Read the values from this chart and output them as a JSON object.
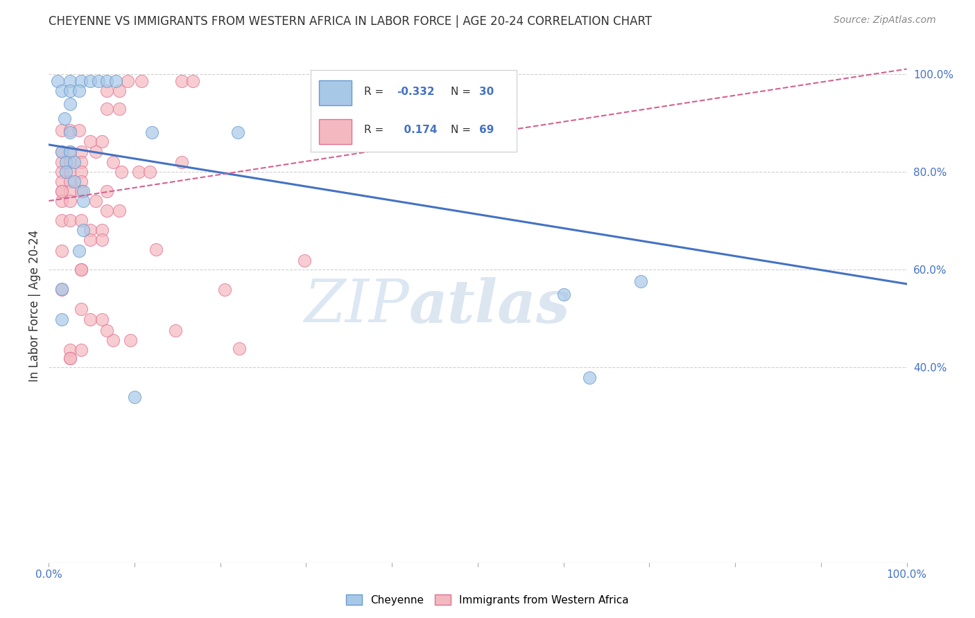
{
  "title": "CHEYENNE VS IMMIGRANTS FROM WESTERN AFRICA IN LABOR FORCE | AGE 20-24 CORRELATION CHART",
  "source": "Source: ZipAtlas.com",
  "ylabel": "In Labor Force | Age 20-24",
  "blue_color": "#a8c8e8",
  "blue_edge_color": "#6699cc",
  "pink_color": "#f4b8c0",
  "pink_edge_color": "#e07090",
  "blue_line_color": "#4472c4",
  "pink_line_color": "#d46090",
  "blue_scatter": [
    [
      0.01,
      0.985
    ],
    [
      0.025,
      0.985
    ],
    [
      0.038,
      0.985
    ],
    [
      0.048,
      0.985
    ],
    [
      0.058,
      0.985
    ],
    [
      0.068,
      0.985
    ],
    [
      0.078,
      0.985
    ],
    [
      0.015,
      0.965
    ],
    [
      0.025,
      0.965
    ],
    [
      0.035,
      0.965
    ],
    [
      0.025,
      0.938
    ],
    [
      0.018,
      0.908
    ],
    [
      0.025,
      0.88
    ],
    [
      0.12,
      0.88
    ],
    [
      0.22,
      0.88
    ],
    [
      0.015,
      0.84
    ],
    [
      0.025,
      0.84
    ],
    [
      0.02,
      0.82
    ],
    [
      0.03,
      0.82
    ],
    [
      0.02,
      0.8
    ],
    [
      0.03,
      0.78
    ],
    [
      0.04,
      0.76
    ],
    [
      0.04,
      0.74
    ],
    [
      0.04,
      0.68
    ],
    [
      0.035,
      0.638
    ],
    [
      0.015,
      0.56
    ],
    [
      0.69,
      0.575
    ],
    [
      0.6,
      0.548
    ],
    [
      0.015,
      0.498
    ],
    [
      0.1,
      0.338
    ],
    [
      0.63,
      0.378
    ]
  ],
  "pink_scatter": [
    [
      0.092,
      0.985
    ],
    [
      0.108,
      0.985
    ],
    [
      0.155,
      0.985
    ],
    [
      0.168,
      0.985
    ],
    [
      0.068,
      0.965
    ],
    [
      0.082,
      0.965
    ],
    [
      0.068,
      0.928
    ],
    [
      0.082,
      0.928
    ],
    [
      0.015,
      0.885
    ],
    [
      0.025,
      0.885
    ],
    [
      0.035,
      0.885
    ],
    [
      0.048,
      0.862
    ],
    [
      0.062,
      0.862
    ],
    [
      0.015,
      0.84
    ],
    [
      0.025,
      0.84
    ],
    [
      0.038,
      0.84
    ],
    [
      0.055,
      0.84
    ],
    [
      0.015,
      0.82
    ],
    [
      0.025,
      0.82
    ],
    [
      0.038,
      0.82
    ],
    [
      0.015,
      0.8
    ],
    [
      0.025,
      0.8
    ],
    [
      0.038,
      0.8
    ],
    [
      0.015,
      0.78
    ],
    [
      0.025,
      0.78
    ],
    [
      0.038,
      0.78
    ],
    [
      0.015,
      0.76
    ],
    [
      0.025,
      0.76
    ],
    [
      0.038,
      0.76
    ],
    [
      0.015,
      0.74
    ],
    [
      0.025,
      0.74
    ],
    [
      0.055,
      0.74
    ],
    [
      0.068,
      0.72
    ],
    [
      0.082,
      0.72
    ],
    [
      0.015,
      0.7
    ],
    [
      0.025,
      0.7
    ],
    [
      0.038,
      0.7
    ],
    [
      0.048,
      0.68
    ],
    [
      0.062,
      0.68
    ],
    [
      0.048,
      0.66
    ],
    [
      0.062,
      0.66
    ],
    [
      0.015,
      0.638
    ],
    [
      0.125,
      0.64
    ],
    [
      0.038,
      0.6
    ],
    [
      0.015,
      0.558
    ],
    [
      0.205,
      0.558
    ],
    [
      0.298,
      0.618
    ],
    [
      0.038,
      0.518
    ],
    [
      0.048,
      0.498
    ],
    [
      0.062,
      0.498
    ],
    [
      0.148,
      0.475
    ],
    [
      0.075,
      0.455
    ],
    [
      0.025,
      0.435
    ],
    [
      0.038,
      0.435
    ],
    [
      0.025,
      0.418
    ],
    [
      0.222,
      0.438
    ],
    [
      0.068,
      0.475
    ],
    [
      0.068,
      0.76
    ],
    [
      0.155,
      0.82
    ],
    [
      0.105,
      0.8
    ],
    [
      0.118,
      0.8
    ],
    [
      0.025,
      0.418
    ],
    [
      0.075,
      0.82
    ],
    [
      0.085,
      0.8
    ],
    [
      0.015,
      0.76
    ],
    [
      0.038,
      0.6
    ],
    [
      0.095,
      0.455
    ]
  ],
  "blue_trend_x": [
    0.0,
    1.0
  ],
  "blue_trend_y": [
    0.855,
    0.57
  ],
  "pink_trend_x": [
    0.0,
    1.0
  ],
  "pink_trend_y": [
    0.74,
    1.01
  ],
  "xlim": [
    0.0,
    1.0
  ],
  "ylim": [
    0.0,
    1.05
  ],
  "ytick_positions": [
    0.4,
    0.6,
    0.8,
    1.0
  ],
  "ytick_labels": [
    "40.0%",
    "60.0%",
    "80.0%",
    "100.0%"
  ],
  "xtick_positions": [
    0.0,
    0.1,
    0.2,
    0.3,
    0.4,
    0.5,
    0.6,
    0.7,
    0.8,
    0.9,
    1.0
  ],
  "watermark_zip": "ZIP",
  "watermark_atlas": "atlas",
  "background_color": "#ffffff",
  "grid_color": "#d0d0d0"
}
